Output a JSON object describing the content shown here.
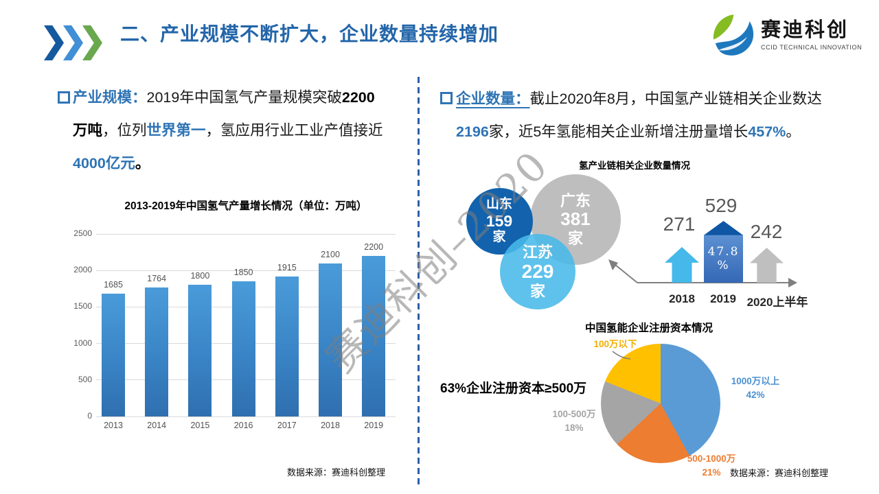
{
  "header": {
    "title": "二、产业规模不断扩大，企业数量持续增加",
    "chevron_colors": [
      "#15599E",
      "#418FD6",
      "#69A84E"
    ],
    "logo": {
      "name": "赛迪科创",
      "subtitle": "CCID TECHNICAL INNOVATION"
    }
  },
  "watermark": "赛迪科创–2020",
  "left": {
    "paragraph": [
      [
        {
          "t": "产业规模：",
          "s": "blue-bold"
        },
        {
          "t": "2019年中国氢气产量规模突破",
          "s": "plain"
        },
        {
          "t": "2200",
          "s": "bold"
        }
      ],
      [
        {
          "t": "万吨",
          "s": "bold"
        },
        {
          "t": "，位列",
          "s": "plain"
        },
        {
          "t": "世界第一",
          "s": "blue-bold"
        },
        {
          "t": "，氢应用行业工业产值接近",
          "s": "plain"
        }
      ],
      [
        {
          "t": "4000亿元",
          "s": "blue-bold"
        },
        {
          "t": "。",
          "s": "bold"
        }
      ]
    ],
    "source": "数据来源：赛迪科创整理"
  },
  "right": {
    "paragraph": [
      [
        {
          "t": "企业数量：",
          "s": "blue-bold-u"
        },
        {
          "t": "截止2020年8月，中国氢产业链相关企业数达",
          "s": "plain"
        }
      ],
      [
        {
          "t": "2196",
          "s": "blue-bold"
        },
        {
          "t": "家，近5年氢能相关企业新增注册量增长",
          "s": "plain"
        },
        {
          "t": "457%",
          "s": "blue-bold"
        },
        {
          "t": "。",
          "s": "plain"
        }
      ]
    ],
    "source": "数据来源：赛迪科创整理"
  },
  "chart_data": [
    {
      "type": "bar",
      "title": "2013-2019年中国氢气产量增长情况（单位：万吨）",
      "categories": [
        "2013",
        "2014",
        "2015",
        "2016",
        "2017",
        "2018",
        "2019"
      ],
      "values": [
        1685,
        1764,
        1800,
        1850,
        1915,
        2100,
        2200
      ],
      "xlabel": "",
      "ylabel": "",
      "ylim": [
        0,
        2500
      ],
      "yticks": [
        0,
        500,
        1000,
        1500,
        2000,
        2500
      ],
      "grid": true,
      "bar_color": "#3984C6"
    },
    {
      "type": "bubble",
      "title": "氢产业链相关企业数量情况",
      "items": [
        {
          "label": "山东",
          "value": "159",
          "suffix": "家",
          "color": "#1262AE"
        },
        {
          "label": "广东",
          "value": "381",
          "suffix": "家",
          "color": "#BEBEBE"
        },
        {
          "label": "江苏",
          "value": "229",
          "suffix": "家",
          "color": "#48BAEA"
        }
      ]
    },
    {
      "type": "bar",
      "subtype": "arrow-pictogram",
      "categories": [
        "2018",
        "2019",
        "2020上半年"
      ],
      "values": [
        271,
        529,
        242
      ],
      "annotation_lines": [
        "47.8",
        "%"
      ],
      "colors": [
        "#45B9E9",
        "#2F6AB2",
        "#BFBFBF"
      ]
    },
    {
      "type": "pie",
      "title": "中国氢能企业注册资本情况",
      "callout": "63%企业注册资本≥500万",
      "labels": [
        "1000万以上",
        "500-1000万",
        "100-500万",
        "100万以下"
      ],
      "values": [
        42,
        21,
        18,
        19
      ],
      "pct_labels": [
        "42%",
        "21%",
        "18%",
        ""
      ],
      "colors": [
        "#5B9BD5",
        "#ED7D31",
        "#A5A5A5",
        "#FFC000"
      ],
      "label_colors": [
        "#4A90D0",
        "#ED7D31",
        "#A5A5A5",
        "#F2AE00"
      ],
      "start": "12-o'clock, clockwise"
    }
  ]
}
